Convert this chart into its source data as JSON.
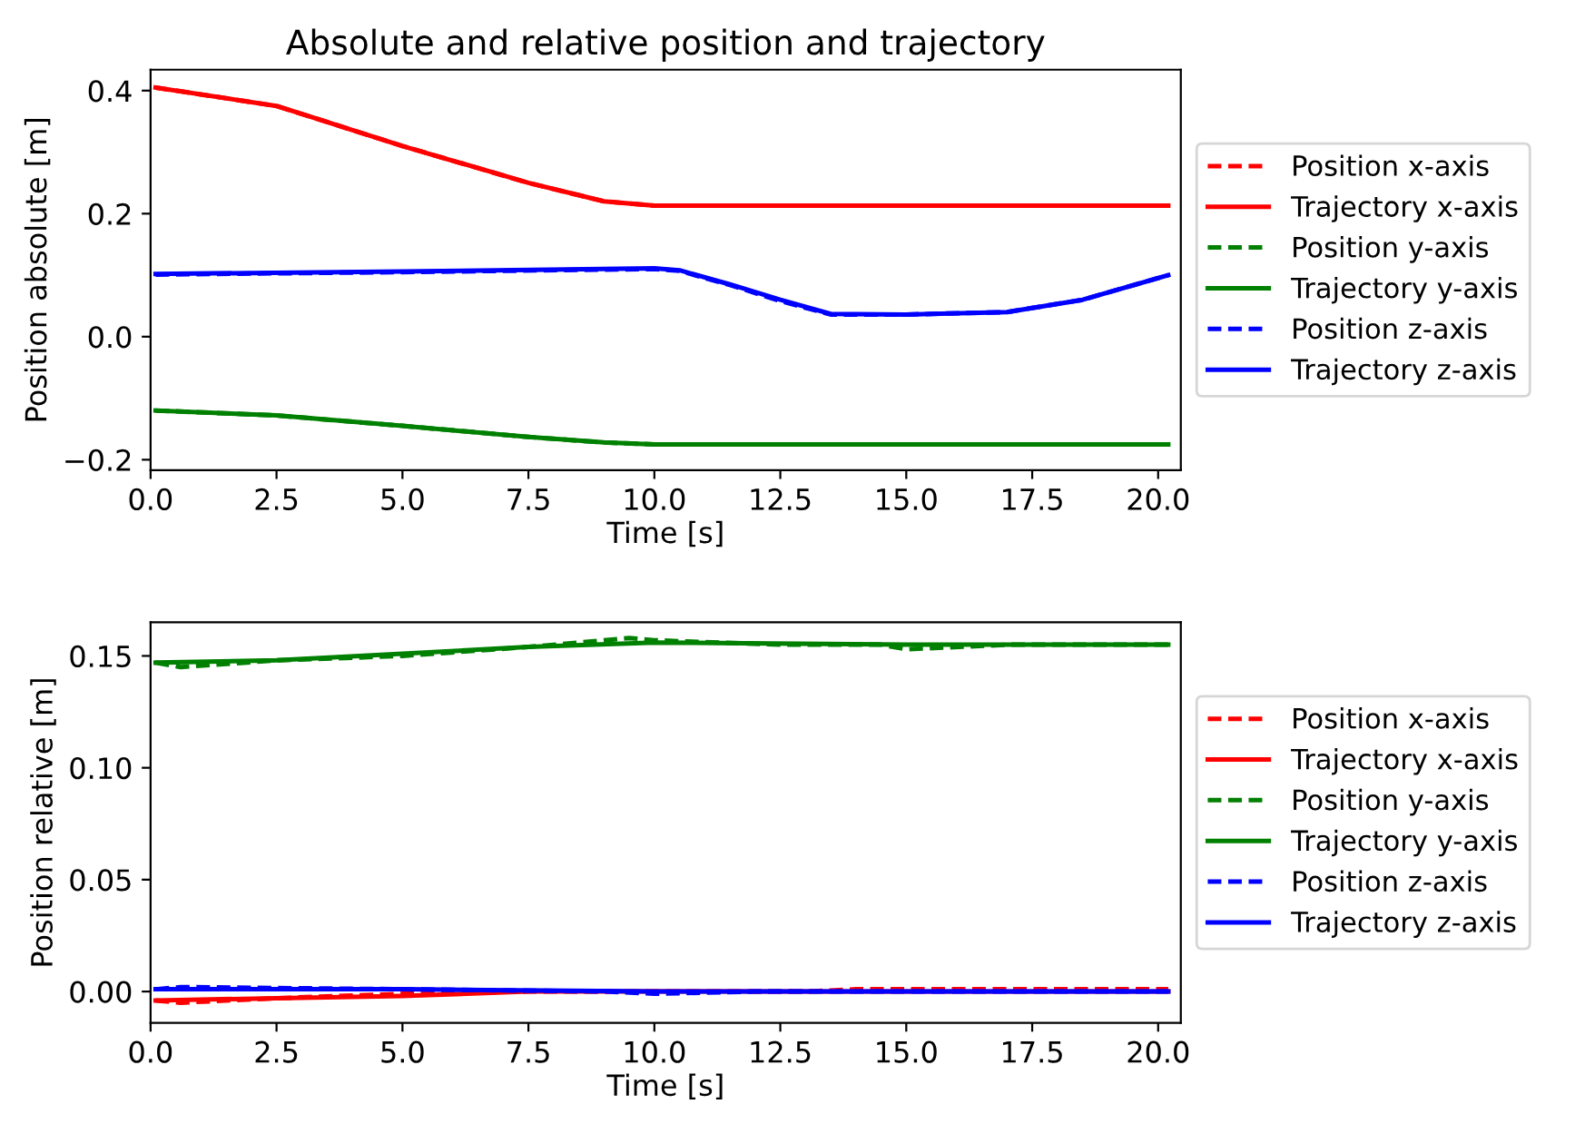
{
  "chart_data": [
    {
      "type": "line",
      "title": "Absolute and relative position and trajectory",
      "xlabel": "Time [s]",
      "ylabel": "Position absolute [m]",
      "xlim": [
        0,
        20.45
      ],
      "xticks": [
        {
          "value": 0,
          "label": "0.0"
        },
        {
          "value": 2.5,
          "label": "2.5"
        },
        {
          "value": 5,
          "label": "5.0"
        },
        {
          "value": 7.5,
          "label": "7.5"
        },
        {
          "value": 10,
          "label": "10.0"
        },
        {
          "value": 12.5,
          "label": "12.5"
        },
        {
          "value": 15,
          "label": "15.0"
        },
        {
          "value": 17.5,
          "label": "17.5"
        },
        {
          "value": 20,
          "label": "20.0"
        }
      ],
      "ylim": [
        -0.217,
        0.434
      ],
      "yticks": [
        {
          "value": -0.2,
          "label": "−0.2"
        },
        {
          "value": 0,
          "label": "0.0"
        },
        {
          "value": 0.2,
          "label": "0.2"
        },
        {
          "value": 0.4,
          "label": "0.4"
        }
      ],
      "grid": false,
      "legend": "right",
      "series": [
        {
          "name": "Position x-axis",
          "color": "#ff0000",
          "line_style": "dashed",
          "x": [
            0.1,
            2.5,
            5,
            7.5,
            9,
            10,
            12.5,
            15,
            20.2
          ],
          "values": [
            0.405,
            0.375,
            0.31,
            0.25,
            0.22,
            0.213,
            0.213,
            0.213,
            0.213
          ]
        },
        {
          "name": "Trajectory x-axis",
          "color": "#ff0000",
          "line_style": "solid",
          "x": [
            0.1,
            2.5,
            5,
            7.5,
            9,
            10,
            12.5,
            15,
            20.2
          ],
          "values": [
            0.405,
            0.375,
            0.31,
            0.25,
            0.22,
            0.213,
            0.213,
            0.213,
            0.213
          ]
        },
        {
          "name": "Position y-axis",
          "color": "#008000",
          "line_style": "dashed",
          "x": [
            0.1,
            2.5,
            5,
            7.5,
            9,
            10,
            15,
            20.2
          ],
          "values": [
            -0.12,
            -0.128,
            -0.145,
            -0.163,
            -0.172,
            -0.175,
            -0.175,
            -0.175
          ]
        },
        {
          "name": "Trajectory y-axis",
          "color": "#008000",
          "line_style": "solid",
          "x": [
            0.1,
            2.5,
            5,
            7.5,
            9,
            10,
            15,
            20.2
          ],
          "values": [
            -0.12,
            -0.128,
            -0.145,
            -0.163,
            -0.172,
            -0.175,
            -0.175,
            -0.175
          ]
        },
        {
          "name": "Position z-axis",
          "color": "#0000ff",
          "line_style": "dashed",
          "x": [
            0.1,
            5,
            10,
            10.5,
            11.5,
            12.5,
            13.5,
            15,
            17,
            18.5,
            20.2
          ],
          "values": [
            0.101,
            0.105,
            0.11,
            0.107,
            0.084,
            0.058,
            0.036,
            0.036,
            0.04,
            0.06,
            0.1
          ]
        },
        {
          "name": "Trajectory z-axis",
          "color": "#0000ff",
          "line_style": "solid",
          "x": [
            0.1,
            5,
            10,
            10.5,
            11.5,
            12.5,
            13.5,
            15,
            17,
            18.5,
            20.2
          ],
          "values": [
            0.102,
            0.106,
            0.111,
            0.108,
            0.085,
            0.06,
            0.037,
            0.036,
            0.04,
            0.06,
            0.1
          ]
        }
      ]
    },
    {
      "type": "line",
      "xlabel": "Time [s]",
      "ylabel": "Position relative [m]",
      "xlim": [
        0,
        20.45
      ],
      "xticks": [
        {
          "value": 0,
          "label": "0.0"
        },
        {
          "value": 2.5,
          "label": "2.5"
        },
        {
          "value": 5,
          "label": "5.0"
        },
        {
          "value": 7.5,
          "label": "7.5"
        },
        {
          "value": 10,
          "label": "10.0"
        },
        {
          "value": 12.5,
          "label": "12.5"
        },
        {
          "value": 15,
          "label": "15.0"
        },
        {
          "value": 17.5,
          "label": "17.5"
        },
        {
          "value": 20,
          "label": "20.0"
        }
      ],
      "ylim": [
        -0.014,
        0.165
      ],
      "yticks": [
        {
          "value": 0,
          "label": "0.00"
        },
        {
          "value": 0.05,
          "label": "0.05"
        },
        {
          "value": 0.1,
          "label": "0.10"
        },
        {
          "value": 0.15,
          "label": "0.15"
        }
      ],
      "grid": false,
      "legend": "right",
      "series": [
        {
          "name": "Position x-axis",
          "color": "#ff0000",
          "line_style": "dashed",
          "x": [
            0.1,
            0.6,
            2.5,
            5,
            7.5,
            13,
            14,
            16,
            18,
            20.2
          ],
          "values": [
            -0.004,
            -0.005,
            -0.003,
            -0.001,
            0,
            0,
            0.001,
            0.001,
            0.001,
            0.001
          ]
        },
        {
          "name": "Trajectory x-axis",
          "color": "#ff0000",
          "line_style": "solid",
          "x": [
            0.1,
            2.5,
            5,
            7.5,
            20.2
          ],
          "values": [
            -0.004,
            -0.003,
            -0.002,
            0,
            0
          ]
        },
        {
          "name": "Position y-axis",
          "color": "#008000",
          "line_style": "dashed",
          "x": [
            0.1,
            0.6,
            2.5,
            5,
            7.5,
            9.5,
            10,
            12.5,
            14.5,
            15,
            17,
            20.2
          ],
          "values": [
            0.147,
            0.145,
            0.148,
            0.15,
            0.154,
            0.158,
            0.157,
            0.155,
            0.155,
            0.153,
            0.155,
            0.155
          ]
        },
        {
          "name": "Trajectory y-axis",
          "color": "#008000",
          "line_style": "solid",
          "x": [
            0.1,
            2.5,
            5,
            7.5,
            10,
            15,
            20.2
          ],
          "values": [
            0.147,
            0.148,
            0.151,
            0.154,
            0.156,
            0.155,
            0.155
          ]
        },
        {
          "name": "Position z-axis",
          "color": "#0000ff",
          "line_style": "dashed",
          "x": [
            0.1,
            0.6,
            5,
            9,
            10,
            12,
            20.2
          ],
          "values": [
            0.001,
            0.002,
            0.001,
            0,
            -0.001,
            0,
            0
          ]
        },
        {
          "name": "Trajectory z-axis",
          "color": "#0000ff",
          "line_style": "solid",
          "x": [
            0.1,
            5,
            10,
            20.2
          ],
          "values": [
            0.001,
            0.001,
            0,
            0
          ]
        }
      ]
    }
  ]
}
